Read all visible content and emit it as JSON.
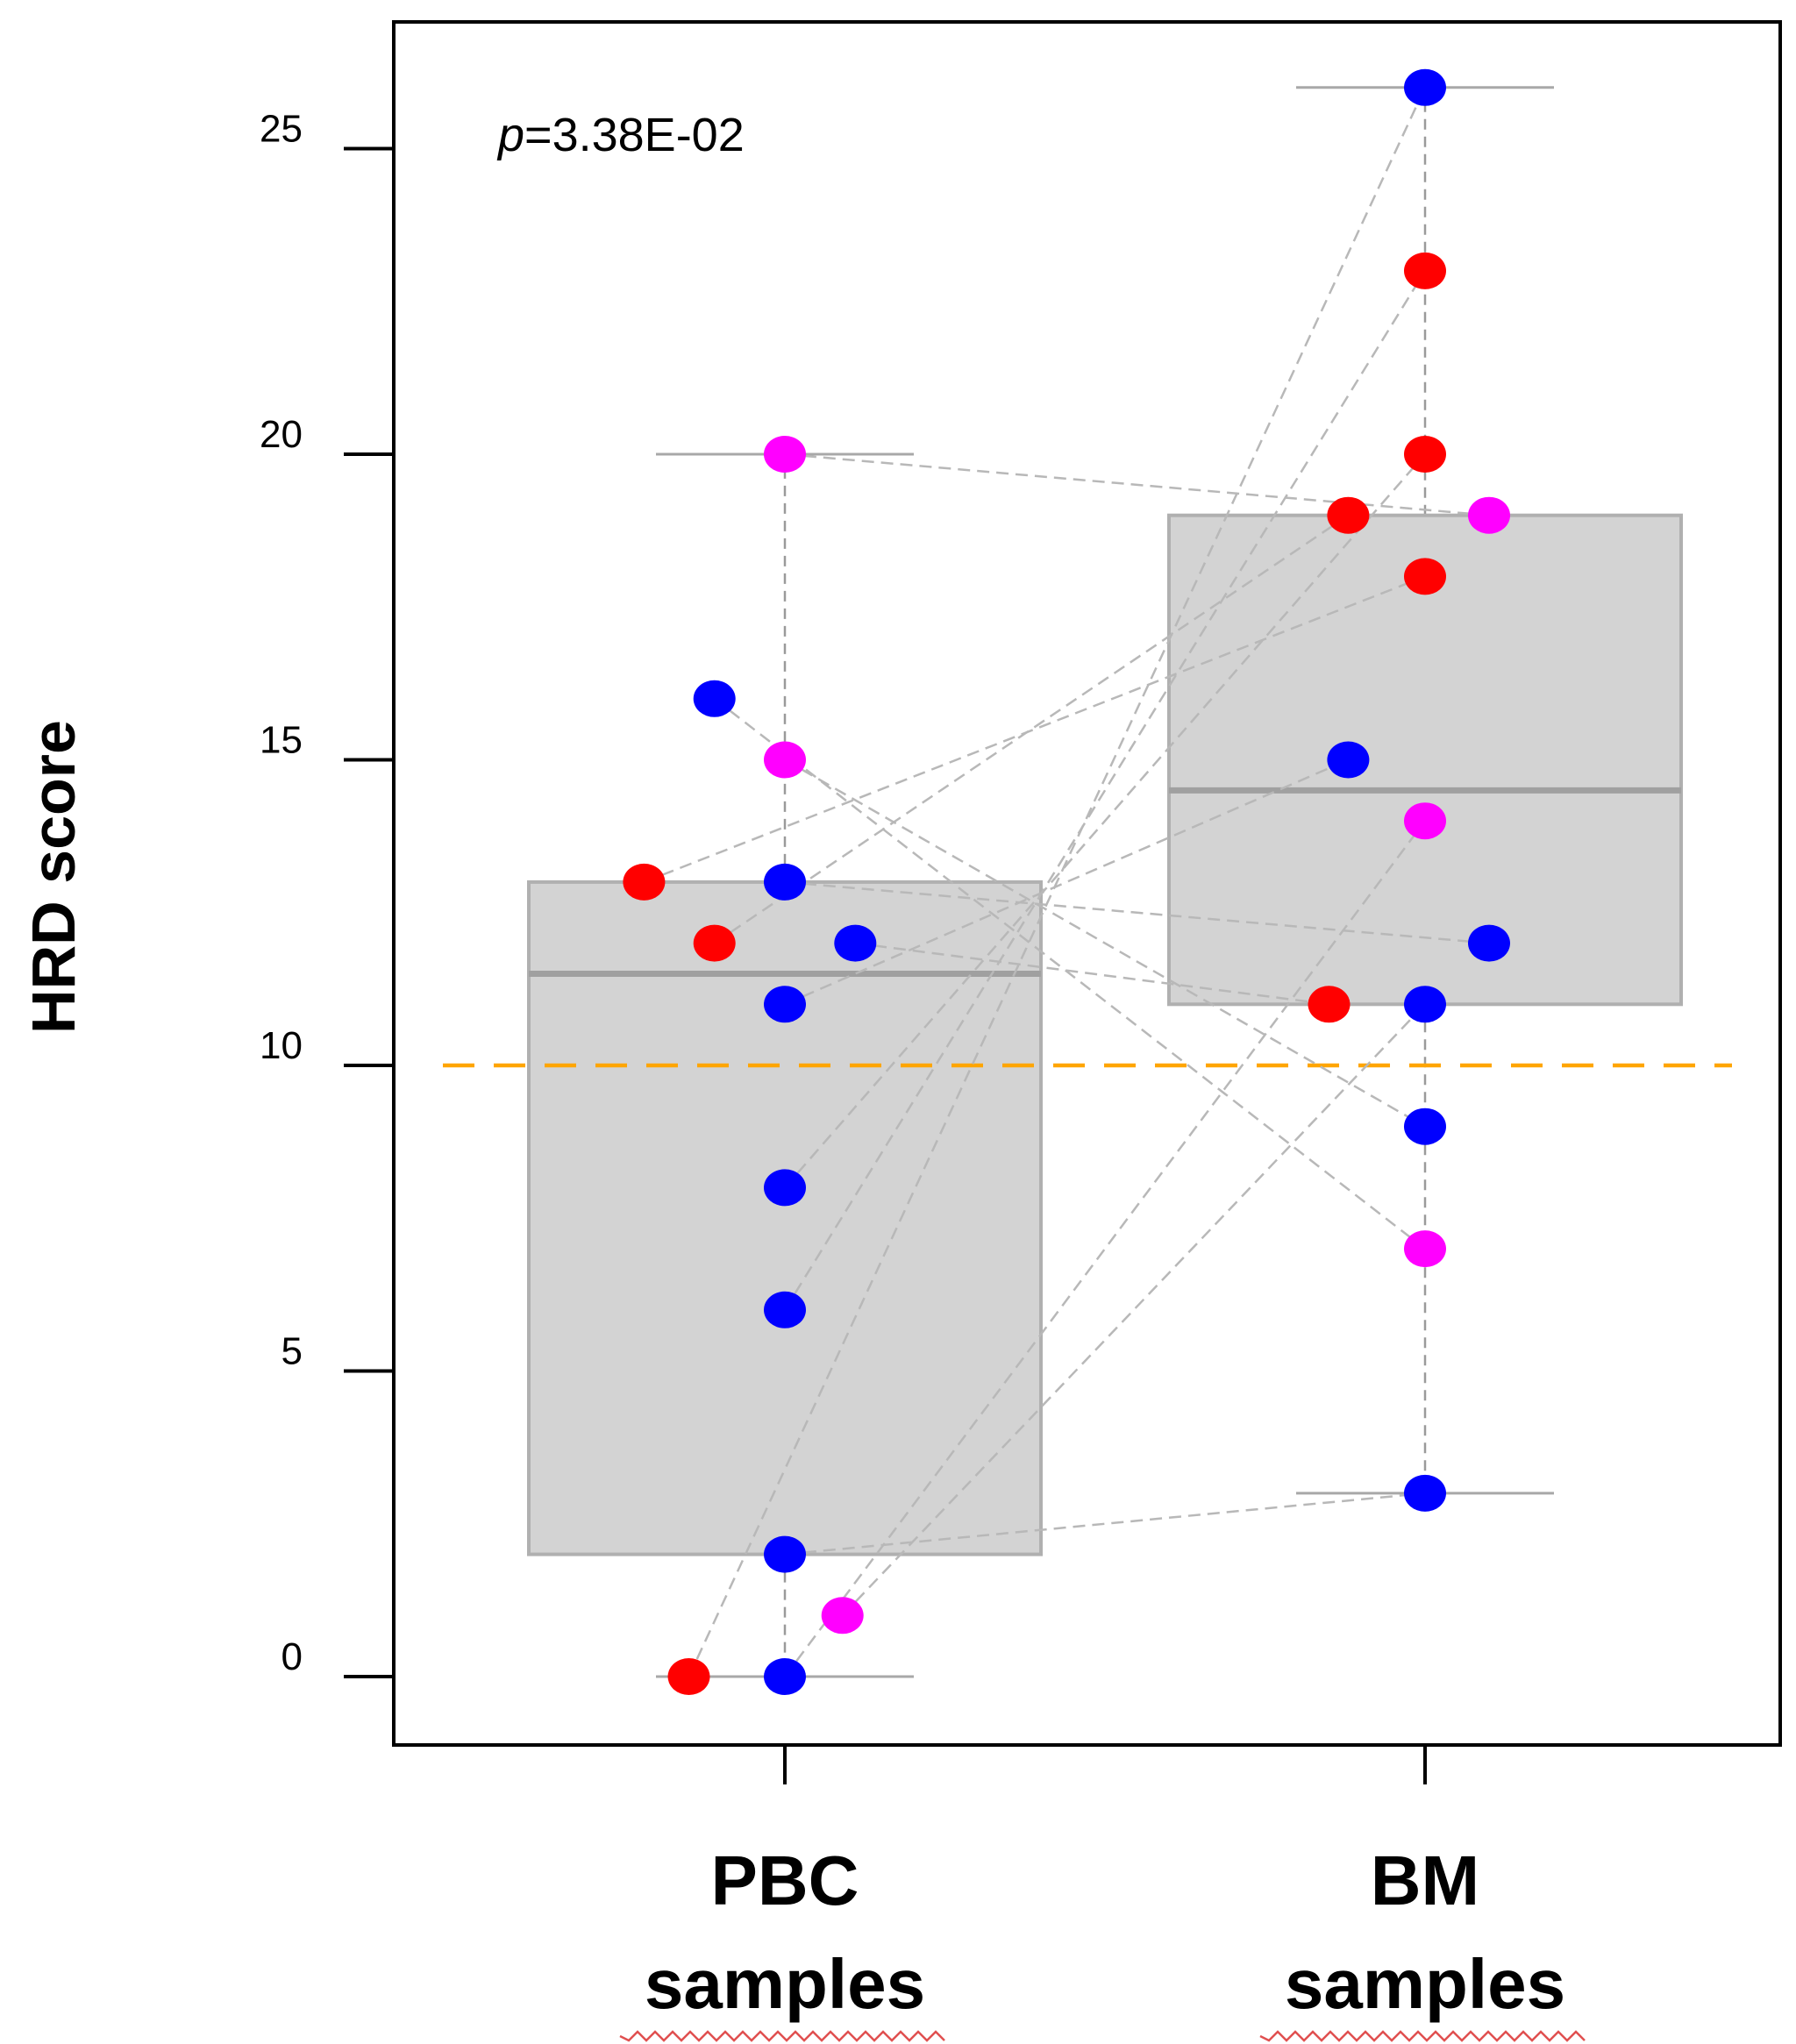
{
  "chart_data": {
    "type": "boxplot",
    "ylabel": "HRD score",
    "ylim": [
      -1.5,
      27
    ],
    "yticks": [
      "0",
      "5",
      "10",
      "15",
      "20",
      "25"
    ],
    "categories": [
      {
        "line1": "PBC",
        "line2": "samples"
      },
      {
        "line1": "BM",
        "line2": "samples"
      }
    ],
    "annotation": {
      "p_symbol": "p",
      "p_value": "=3.38E-02"
    },
    "threshold": 10,
    "colors": {
      "red": "#ff0000",
      "blue": "#0000ff",
      "magenta": "#ff00ff",
      "box": "#d3d3d3",
      "box_edge": "#b0b0b0",
      "threshold": "#ffa500",
      "pair_line": "#b8b8b8"
    },
    "boxes": [
      {
        "category": "PBC",
        "min": 0,
        "q1": 2,
        "median": 11.5,
        "q3": 13,
        "max": 20
      },
      {
        "category": "BM",
        "min": 3,
        "q1": 11,
        "median": 14.5,
        "q3": 19,
        "max": 26
      }
    ],
    "points": [
      {
        "id": "pbc-1",
        "group": "PBC",
        "x": 0.35,
        "y": 0,
        "color": "red"
      },
      {
        "id": "pbc-2",
        "group": "PBC",
        "x": 0.5,
        "y": 0,
        "color": "blue"
      },
      {
        "id": "pbc-3",
        "group": "PBC",
        "x": 0.59,
        "y": 1,
        "color": "magenta"
      },
      {
        "id": "pbc-4",
        "group": "PBC",
        "x": 0.5,
        "y": 2,
        "color": "blue"
      },
      {
        "id": "pbc-5",
        "group": "PBC",
        "x": 0.5,
        "y": 6,
        "color": "blue"
      },
      {
        "id": "pbc-6",
        "group": "PBC",
        "x": 0.5,
        "y": 8,
        "color": "blue"
      },
      {
        "id": "pbc-7",
        "group": "PBC",
        "x": 0.5,
        "y": 11,
        "color": "blue"
      },
      {
        "id": "pbc-8",
        "group": "PBC",
        "x": 0.39,
        "y": 12,
        "color": "red"
      },
      {
        "id": "pbc-9",
        "group": "PBC",
        "x": 0.61,
        "y": 12,
        "color": "blue"
      },
      {
        "id": "pbc-10",
        "group": "PBC",
        "x": 0.28,
        "y": 13,
        "color": "red"
      },
      {
        "id": "pbc-11",
        "group": "PBC",
        "x": 0.5,
        "y": 13,
        "color": "blue"
      },
      {
        "id": "pbc-12",
        "group": "PBC",
        "x": 0.5,
        "y": 15,
        "color": "magenta"
      },
      {
        "id": "pbc-13",
        "group": "PBC",
        "x": 0.39,
        "y": 16,
        "color": "blue"
      },
      {
        "id": "pbc-14",
        "group": "PBC",
        "x": 0.5,
        "y": 20,
        "color": "magenta"
      },
      {
        "id": "bm-1",
        "group": "BM",
        "x": 1.5,
        "y": 3,
        "color": "blue"
      },
      {
        "id": "bm-2",
        "group": "BM",
        "x": 1.5,
        "y": 7,
        "color": "magenta"
      },
      {
        "id": "bm-3",
        "group": "BM",
        "x": 1.5,
        "y": 9,
        "color": "blue"
      },
      {
        "id": "bm-4",
        "group": "BM",
        "x": 1.35,
        "y": 11,
        "color": "red"
      },
      {
        "id": "bm-5",
        "group": "BM",
        "x": 1.5,
        "y": 11,
        "color": "blue"
      },
      {
        "id": "bm-6",
        "group": "BM",
        "x": 1.6,
        "y": 12,
        "color": "blue"
      },
      {
        "id": "bm-7",
        "group": "BM",
        "x": 1.5,
        "y": 14,
        "color": "magenta"
      },
      {
        "id": "bm-8",
        "group": "BM",
        "x": 1.38,
        "y": 15,
        "color": "blue"
      },
      {
        "id": "bm-9",
        "group": "BM",
        "x": 1.5,
        "y": 18,
        "color": "red"
      },
      {
        "id": "bm-10",
        "group": "BM",
        "x": 1.38,
        "y": 19,
        "color": "red"
      },
      {
        "id": "bm-11",
        "group": "BM",
        "x": 1.6,
        "y": 19,
        "color": "magenta"
      },
      {
        "id": "bm-12",
        "group": "BM",
        "x": 1.5,
        "y": 20,
        "color": "red"
      },
      {
        "id": "bm-13",
        "group": "BM",
        "x": 1.5,
        "y": 23,
        "color": "red"
      },
      {
        "id": "bm-14",
        "group": "BM",
        "x": 1.5,
        "y": 26,
        "color": "blue"
      }
    ],
    "pairs": [
      [
        "pbc-14",
        "bm-11"
      ],
      [
        "pbc-13",
        "bm-2"
      ],
      [
        "pbc-12",
        "bm-3"
      ],
      [
        "pbc-10",
        "bm-9"
      ],
      [
        "pbc-8",
        "bm-10"
      ],
      [
        "pbc-11",
        "bm-6"
      ],
      [
        "pbc-9",
        "bm-4"
      ],
      [
        "pbc-7",
        "bm-8"
      ],
      [
        "pbc-6",
        "bm-12"
      ],
      [
        "pbc-5",
        "bm-13"
      ],
      [
        "pbc-4",
        "bm-1"
      ],
      [
        "pbc-1",
        "bm-14"
      ],
      [
        "pbc-2",
        "bm-7"
      ],
      [
        "pbc-3",
        "bm-5"
      ]
    ]
  }
}
